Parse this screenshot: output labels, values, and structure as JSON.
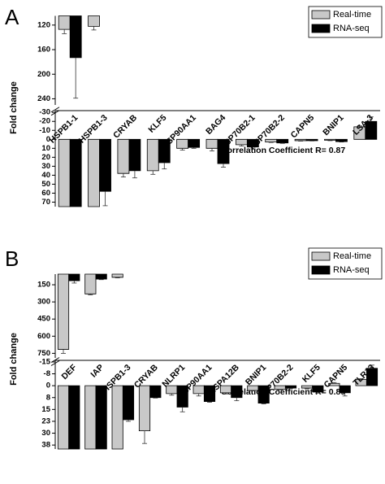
{
  "chart_data": [
    {
      "type": "bar",
      "panel_label": "A",
      "y_label": "Fold change",
      "annotation": "Correlation Coefficient  R= 0.87",
      "legend": "upper right",
      "categories": [
        "HSPB1-1",
        "HSPB1-3",
        "CRYAB",
        "KLF5",
        "HSP90AA1",
        "BAG4",
        "HSP70B2-1",
        "HSP70B2-2",
        "CAPN5",
        "BNIP1",
        "LSA-3"
      ],
      "series": [
        {
          "name": "Real-time",
          "color": "#c8c8c8",
          "values": [
            127,
            122,
            38,
            35,
            10,
            10,
            6,
            3,
            1.5,
            1,
            -14
          ],
          "errors": [
            7,
            6,
            4,
            4,
            2,
            3,
            1.5,
            0.5,
            0.5,
            0.5,
            1
          ]
        },
        {
          "name": "RNA-seq",
          "color": "#000000",
          "values": [
            173,
            58,
            35,
            26,
            9,
            27,
            8.5,
            4,
            1.5,
            2.5,
            -20
          ],
          "errors": [
            66,
            16,
            8,
            7,
            1,
            4,
            2,
            0.5,
            0.3,
            0.5,
            5
          ]
        }
      ],
      "axis_segments": [
        {
          "ylim": [
            -32,
            75
          ],
          "yticks": [
            -30,
            -20,
            -10,
            0,
            10,
            20,
            30,
            40,
            50,
            60,
            70
          ]
        },
        {
          "ylim": [
            105,
            250
          ],
          "yticks": [
            120,
            160,
            200,
            240
          ]
        }
      ]
    },
    {
      "type": "bar",
      "panel_label": "B",
      "y_label": "Fold change",
      "annotation": "Correlation Coefficient  R= 0.89",
      "legend": "upper right",
      "categories": [
        "DEF",
        "IAP",
        "HSPB1-3",
        "CRYAB",
        "NLRP1",
        "HSP90AA1",
        "HSPA12B",
        "BNIP1",
        "HSP70B2-2",
        "KLF5",
        "CAPN5",
        "TLR13"
      ],
      "series": [
        {
          "name": "Real-time",
          "color": "#c8c8c8",
          "values": [
            715,
            230,
            85,
            28.5,
            5,
            5,
            4.5,
            3,
            2.3,
            1.5,
            -1.5,
            -4
          ],
          "errors": [
            35,
            8,
            5,
            8,
            1,
            1.5,
            0.7,
            0.3,
            0.3,
            0.5,
            0.5,
            0.5
          ]
        },
        {
          "name": "RNA-seq",
          "color": "#000000",
          "values": [
            115,
            100,
            21.5,
            7.5,
            13.5,
            10,
            7.5,
            11,
            1.5,
            4,
            4.5,
            -11
          ],
          "errors": [
            20,
            5,
            1,
            0.3,
            3,
            0.5,
            2,
            0.5,
            0.2,
            0.7,
            2,
            2
          ]
        }
      ],
      "axis_segments": [
        {
          "ylim": [
            -16,
            40
          ],
          "yticks": [
            -15,
            {
              "value": -7.5,
              "label": "-8"
            },
            0,
            {
              "value": 7.5,
              "label": "8"
            },
            15,
            {
              "value": 22.5,
              "label": "23"
            },
            30,
            {
              "value": 37.5,
              "label": "38"
            }
          ]
        },
        {
          "ylim": [
            57,
            790
          ],
          "yticks": [
            150,
            300,
            450,
            600,
            750
          ]
        }
      ]
    }
  ]
}
